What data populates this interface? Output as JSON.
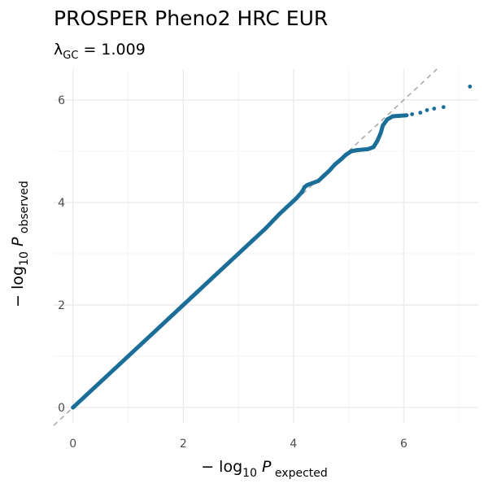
{
  "chart_data": {
    "type": "scatter",
    "title": "PROSPER Pheno2 HRC EUR",
    "subtitle": {
      "lambda_symbol": "λ",
      "lambda_subscript": "GC",
      "equals": " = ",
      "lambda_value": "1.009"
    },
    "xlabel": {
      "prefix": "− log",
      "base": "10",
      "var": " P",
      "sub": " expected"
    },
    "ylabel": {
      "prefix": "− log",
      "base": "10",
      "var": " P",
      "sub": " observed"
    },
    "xlim": [
      -0.35,
      7.35
    ],
    "ylim": [
      -0.3,
      6.6
    ],
    "x_ticks": [
      0,
      2,
      4,
      6
    ],
    "y_ticks": [
      0,
      2,
      4,
      6
    ],
    "x_tick_labels": [
      "0",
      "2",
      "4",
      "6"
    ],
    "y_tick_labels": [
      "0",
      "2",
      "4",
      "6"
    ],
    "grid": true,
    "reference_line": {
      "slope": 1,
      "intercept": 0,
      "style": "dashed",
      "color": "#aaaaaa"
    },
    "point_color": "#1a6e98",
    "series": [
      {
        "points": [
          [
            0.0,
            0.0
          ],
          [
            0.25,
            0.25
          ],
          [
            0.5,
            0.5
          ],
          [
            0.75,
            0.75
          ],
          [
            1.0,
            1.0
          ],
          [
            1.25,
            1.25
          ],
          [
            1.5,
            1.5
          ],
          [
            1.75,
            1.75
          ],
          [
            2.0,
            2.0
          ],
          [
            2.25,
            2.25
          ],
          [
            2.5,
            2.5
          ],
          [
            2.75,
            2.75
          ],
          [
            3.0,
            3.0
          ],
          [
            3.25,
            3.25
          ],
          [
            3.5,
            3.5
          ],
          [
            3.75,
            3.78
          ],
          [
            3.95,
            3.98
          ],
          [
            4.05,
            4.08
          ],
          [
            4.15,
            4.2
          ],
          [
            4.2,
            4.3
          ],
          [
            4.25,
            4.34
          ],
          [
            4.35,
            4.38
          ],
          [
            4.45,
            4.42
          ],
          [
            4.55,
            4.52
          ],
          [
            4.65,
            4.62
          ],
          [
            4.75,
            4.74
          ],
          [
            4.85,
            4.83
          ],
          [
            4.95,
            4.93
          ],
          [
            5.05,
            5.0
          ],
          [
            5.15,
            5.02
          ],
          [
            5.25,
            5.03
          ],
          [
            5.35,
            5.04
          ],
          [
            5.45,
            5.08
          ],
          [
            5.52,
            5.2
          ],
          [
            5.58,
            5.35
          ],
          [
            5.62,
            5.5
          ],
          [
            5.7,
            5.62
          ],
          [
            5.8,
            5.68
          ],
          [
            5.92,
            5.69
          ],
          [
            6.05,
            5.7
          ],
          [
            6.15,
            5.72
          ],
          [
            6.3,
            5.75
          ],
          [
            6.42,
            5.8
          ],
          [
            6.55,
            5.83
          ],
          [
            6.72,
            5.86
          ],
          [
            7.2,
            6.26
          ]
        ]
      }
    ]
  }
}
